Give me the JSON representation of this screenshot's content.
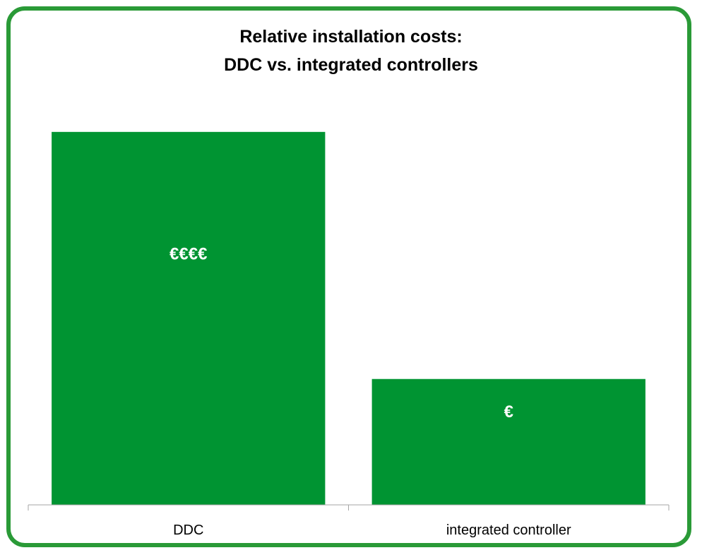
{
  "chart_data": {
    "type": "bar",
    "title_lines": [
      "Relative installation costs:",
      "DDC vs. integrated controllers"
    ],
    "categories": [
      "DDC",
      "integrated controller"
    ],
    "values": [
      4,
      1.35
    ],
    "data_labels": [
      "€€€€",
      "€"
    ],
    "ylim": [
      0,
      4.4
    ],
    "grid": false,
    "legend": "none",
    "colors": {
      "bar": "#009432",
      "frame": "#2a9a37",
      "data_label": "#ffffff",
      "axis": "#a6a6a6"
    }
  }
}
